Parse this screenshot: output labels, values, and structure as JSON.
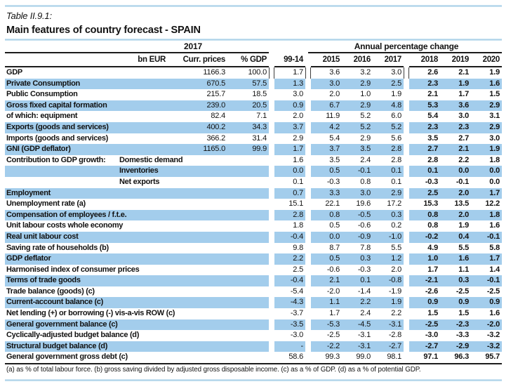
{
  "header": {
    "table_label": "Table II.9.1:",
    "title": "Main features of country forecast - SPAIN"
  },
  "table": {
    "group_left_label": "2017",
    "group_right_label": "Annual percentage change",
    "col_headers": {
      "bn_eur": "bn EUR",
      "curr_prices": "Curr. prices",
      "pct_gdp": "% GDP",
      "avg": "99-14",
      "years": [
        "2015",
        "2016",
        "2017",
        "2018",
        "2019",
        "2020"
      ]
    },
    "rows": [
      {
        "label": "GDP",
        "sub": "",
        "shaded": false,
        "values": [
          "1166.3",
          "100.0",
          "1.7",
          "3.6",
          "3.2",
          "3.0",
          "2.6",
          "2.1",
          "1.9"
        ]
      },
      {
        "label": "Private Consumption",
        "sub": "",
        "shaded": true,
        "values": [
          "670.5",
          "57.5",
          "1.3",
          "3.0",
          "2.9",
          "2.5",
          "2.3",
          "1.9",
          "1.6"
        ]
      },
      {
        "label": "Public Consumption",
        "sub": "",
        "shaded": false,
        "values": [
          "215.7",
          "18.5",
          "3.0",
          "2.0",
          "1.0",
          "1.9",
          "2.1",
          "1.7",
          "1.5"
        ]
      },
      {
        "label": "Gross fixed capital formation",
        "sub": "",
        "shaded": true,
        "values": [
          "239.0",
          "20.5",
          "0.9",
          "6.7",
          "2.9",
          "4.8",
          "5.3",
          "3.6",
          "2.9"
        ]
      },
      {
        "label": "of which: equipment",
        "sub": "",
        "shaded": false,
        "values": [
          "82.4",
          "7.1",
          "2.0",
          "11.9",
          "5.2",
          "6.0",
          "5.4",
          "3.0",
          "3.1"
        ]
      },
      {
        "label": "Exports (goods and services)",
        "sub": "",
        "shaded": true,
        "values": [
          "400.2",
          "34.3",
          "3.7",
          "4.2",
          "5.2",
          "5.2",
          "2.3",
          "2.3",
          "2.9"
        ]
      },
      {
        "label": "Imports (goods and services)",
        "sub": "",
        "shaded": false,
        "values": [
          "366.2",
          "31.4",
          "2.9",
          "5.4",
          "2.9",
          "5.6",
          "3.5",
          "2.7",
          "3.0"
        ]
      },
      {
        "label": "GNI (GDP deflator)",
        "sub": "",
        "shaded": true,
        "values": [
          "1165.0",
          "99.9",
          "1.7",
          "3.7",
          "3.5",
          "2.8",
          "2.7",
          "2.1",
          "1.9"
        ]
      },
      {
        "label": "Contribution to GDP growth:",
        "sub": "Domestic demand",
        "shaded": false,
        "values": [
          "",
          "",
          "1.6",
          "3.5",
          "2.4",
          "2.8",
          "2.8",
          "2.2",
          "1.8"
        ]
      },
      {
        "label": "",
        "sub": "Inventories",
        "shaded": true,
        "values": [
          "",
          "",
          "0.0",
          "0.5",
          "-0.1",
          "0.1",
          "0.1",
          "0.0",
          "0.0"
        ]
      },
      {
        "label": "",
        "sub": "Net exports",
        "shaded": false,
        "values": [
          "",
          "",
          "0.1",
          "-0.3",
          "0.8",
          "0.1",
          "-0.3",
          "-0.1",
          "0.0"
        ]
      },
      {
        "label": "Employment",
        "sub": "",
        "shaded": true,
        "values": [
          "",
          "",
          "0.7",
          "3.3",
          "3.0",
          "2.9",
          "2.5",
          "2.0",
          "1.7"
        ]
      },
      {
        "label": "Unemployment rate (a)",
        "sub": "",
        "shaded": false,
        "values": [
          "",
          "",
          "15.1",
          "22.1",
          "19.6",
          "17.2",
          "15.3",
          "13.5",
          "12.2"
        ]
      },
      {
        "label": "Compensation of employees / f.t.e.",
        "sub": "",
        "shaded": true,
        "values": [
          "",
          "",
          "2.8",
          "0.8",
          "-0.5",
          "0.3",
          "0.8",
          "2.0",
          "1.8"
        ]
      },
      {
        "label": "Unit labour costs whole economy",
        "sub": "",
        "shaded": false,
        "values": [
          "",
          "",
          "1.8",
          "0.5",
          "-0.6",
          "0.2",
          "0.8",
          "1.9",
          "1.6"
        ]
      },
      {
        "label": "Real unit labour cost",
        "sub": "",
        "shaded": true,
        "values": [
          "",
          "",
          "-0.4",
          "0.0",
          "-0.9",
          "-1.0",
          "-0.2",
          "0.4",
          "-0.1"
        ]
      },
      {
        "label": "Saving rate of households (b)",
        "sub": "",
        "shaded": false,
        "values": [
          "",
          "",
          "9.8",
          "8.7",
          "7.8",
          "5.5",
          "4.9",
          "5.5",
          "5.8"
        ]
      },
      {
        "label": "GDP deflator",
        "sub": "",
        "shaded": true,
        "values": [
          "",
          "",
          "2.2",
          "0.5",
          "0.3",
          "1.2",
          "1.0",
          "1.6",
          "1.7"
        ]
      },
      {
        "label": "Harmonised index of consumer prices",
        "sub": "",
        "shaded": false,
        "values": [
          "",
          "",
          "2.5",
          "-0.6",
          "-0.3",
          "2.0",
          "1.7",
          "1.1",
          "1.4"
        ]
      },
      {
        "label": "Terms of trade goods",
        "sub": "",
        "shaded": true,
        "values": [
          "",
          "",
          "-0.4",
          "2.1",
          "0.1",
          "-0.8",
          "-2.1",
          "0.3",
          "-0.1"
        ]
      },
      {
        "label": "Trade balance (goods) (c)",
        "sub": "",
        "shaded": false,
        "values": [
          "",
          "",
          "-5.4",
          "-2.0",
          "-1.4",
          "-1.9",
          "-2.6",
          "-2.5",
          "-2.5"
        ]
      },
      {
        "label": "Current-account balance (c)",
        "sub": "",
        "shaded": true,
        "values": [
          "",
          "",
          "-4.3",
          "1.1",
          "2.2",
          "1.9",
          "0.9",
          "0.9",
          "0.9"
        ]
      },
      {
        "label": "Net lending (+) or borrowing (-) vis-a-vis ROW (c)",
        "sub": "",
        "shaded": false,
        "values": [
          "",
          "",
          "-3.7",
          "1.7",
          "2.4",
          "2.2",
          "1.5",
          "1.5",
          "1.6"
        ]
      },
      {
        "label": "General government balance (c)",
        "sub": "",
        "shaded": true,
        "values": [
          "",
          "",
          "-3.5",
          "-5.3",
          "-4.5",
          "-3.1",
          "-2.5",
          "-2.3",
          "-2.0"
        ]
      },
      {
        "label": "Cyclically-adjusted budget balance (d)",
        "sub": "",
        "shaded": false,
        "values": [
          "",
          "",
          "-3.0",
          "-2.5",
          "-3.1",
          "-2.8",
          "-3.0",
          "-3.3",
          "-3.2"
        ]
      },
      {
        "label": "Structural budget balance (d)",
        "sub": "",
        "shaded": true,
        "values": [
          "",
          "",
          "-",
          "-2.2",
          "-3.1",
          "-2.7",
          "-2.7",
          "-2.9",
          "-3.2"
        ]
      },
      {
        "label": "General government gross debt (c)",
        "sub": "",
        "shaded": false,
        "values": [
          "",
          "",
          "58.6",
          "99.3",
          "99.0",
          "98.1",
          "97.1",
          "96.3",
          "95.7"
        ]
      }
    ]
  },
  "footnote": "(a) as % of total labour force. (b) gross saving divided by adjusted gross disposable income. (c) as a % of GDP. (d) as a % of potential GDP.",
  "colors": {
    "stripe": "#a3cdec",
    "rule": "#1c1c1c",
    "accent_line": "#a6cde6"
  }
}
